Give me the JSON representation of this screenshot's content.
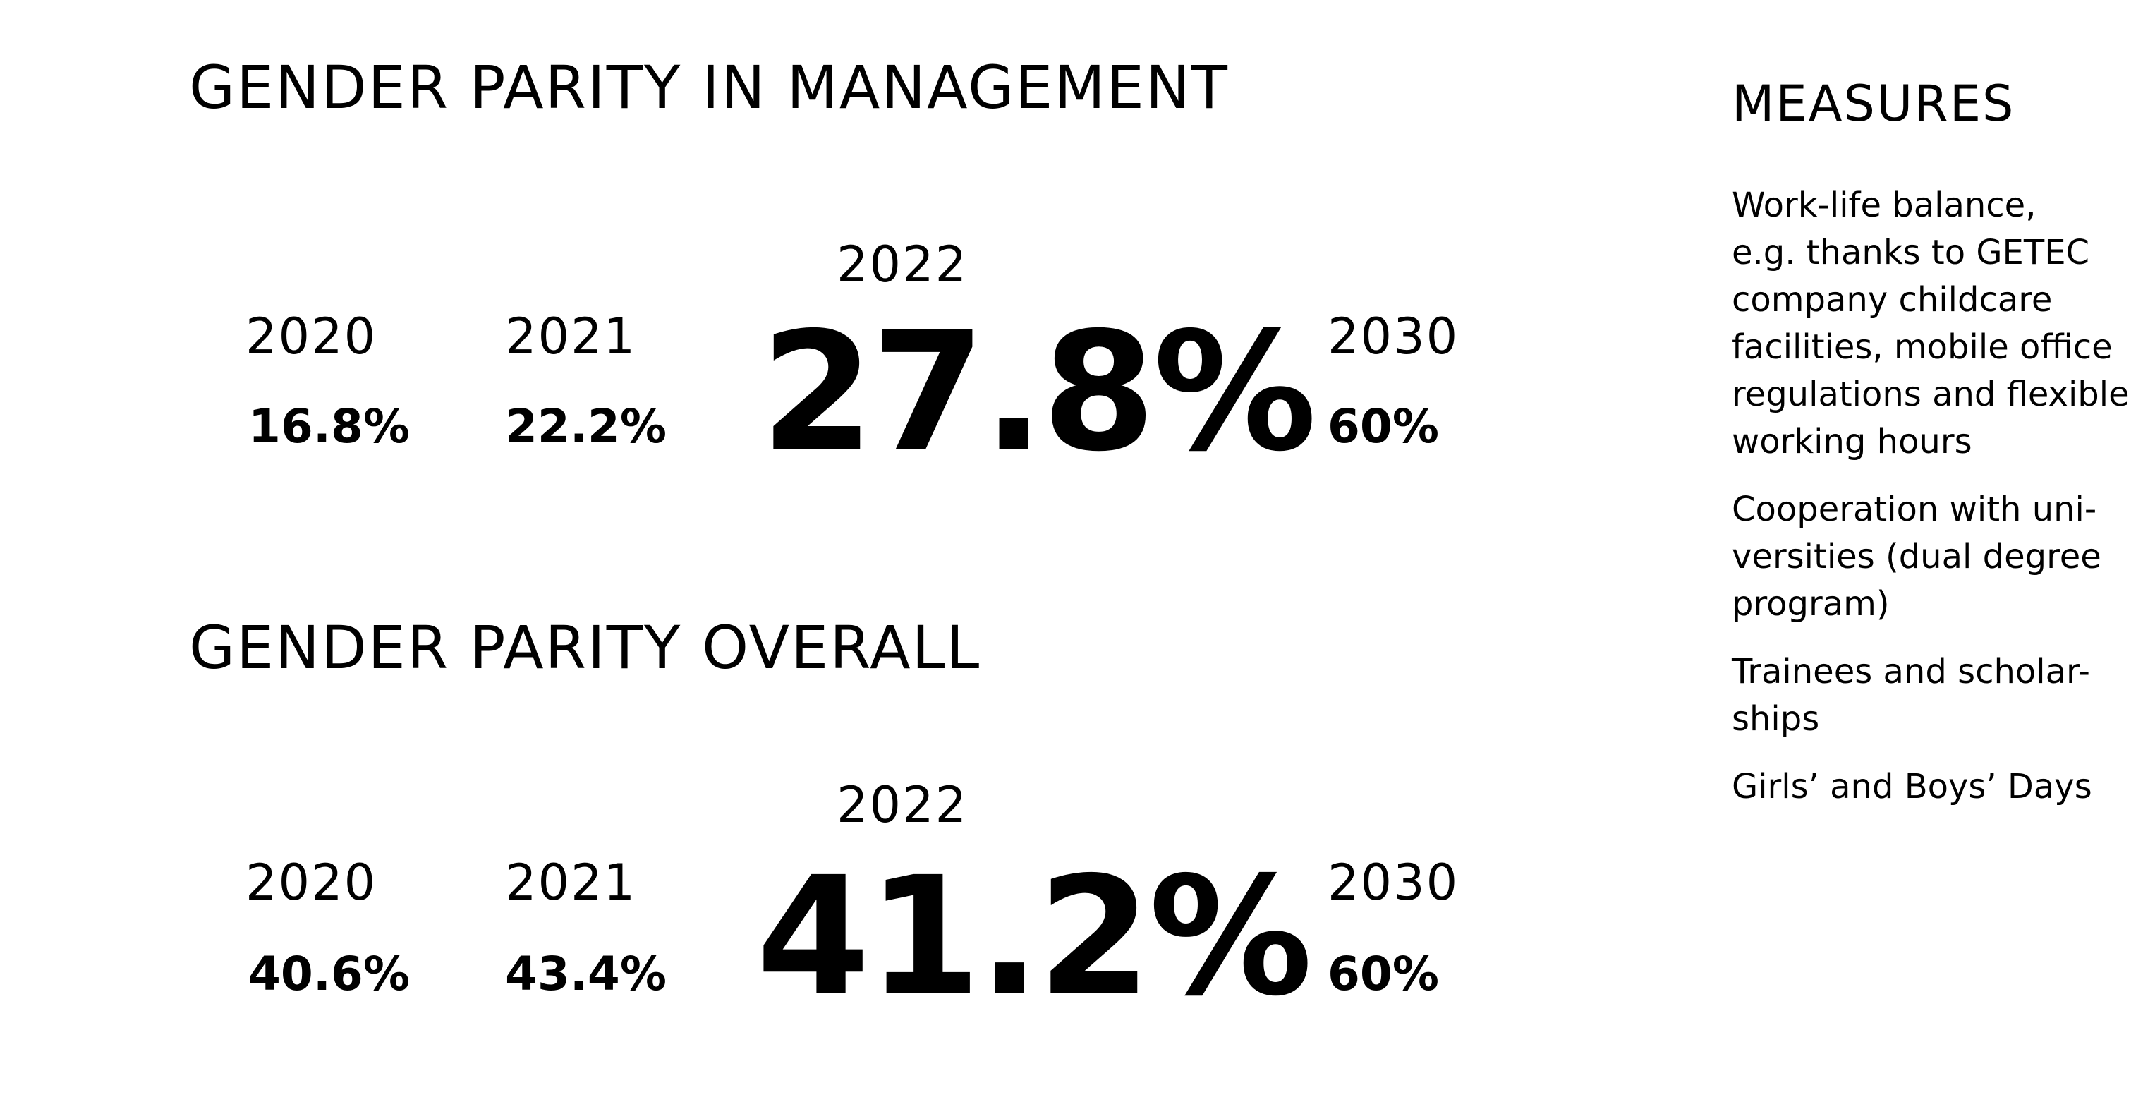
{
  "management": {
    "title": "GENDER PARITY IN MANAGEMENT",
    "years": [
      {
        "year": "2020",
        "value": "16.8%"
      },
      {
        "year": "2021",
        "value": "22.2%"
      },
      {
        "year": "2022",
        "value": "27.8%"
      },
      {
        "year": "2030",
        "value": "60%"
      }
    ]
  },
  "overall": {
    "title": "GENDER PARITY OVERALL",
    "years": [
      {
        "year": "2020",
        "value": "40.6%"
      },
      {
        "year": "2021",
        "value": "43.4%"
      },
      {
        "year": "2022",
        "value": "41.2%"
      },
      {
        "year": "2030",
        "value": "60%"
      }
    ]
  },
  "measures": {
    "title": "MEASURES",
    "items": [
      "Work-life balance,\ne.g. thanks to GETEC\ncompany childcare\nfacilities, mobile office\nregulations and flexible\nworking hours",
      "Cooperation with uni-\nversities (dual degree\nprogram)",
      "Trainees and scholar-\nships",
      "Girls’ and Boys’ Days"
    ]
  }
}
